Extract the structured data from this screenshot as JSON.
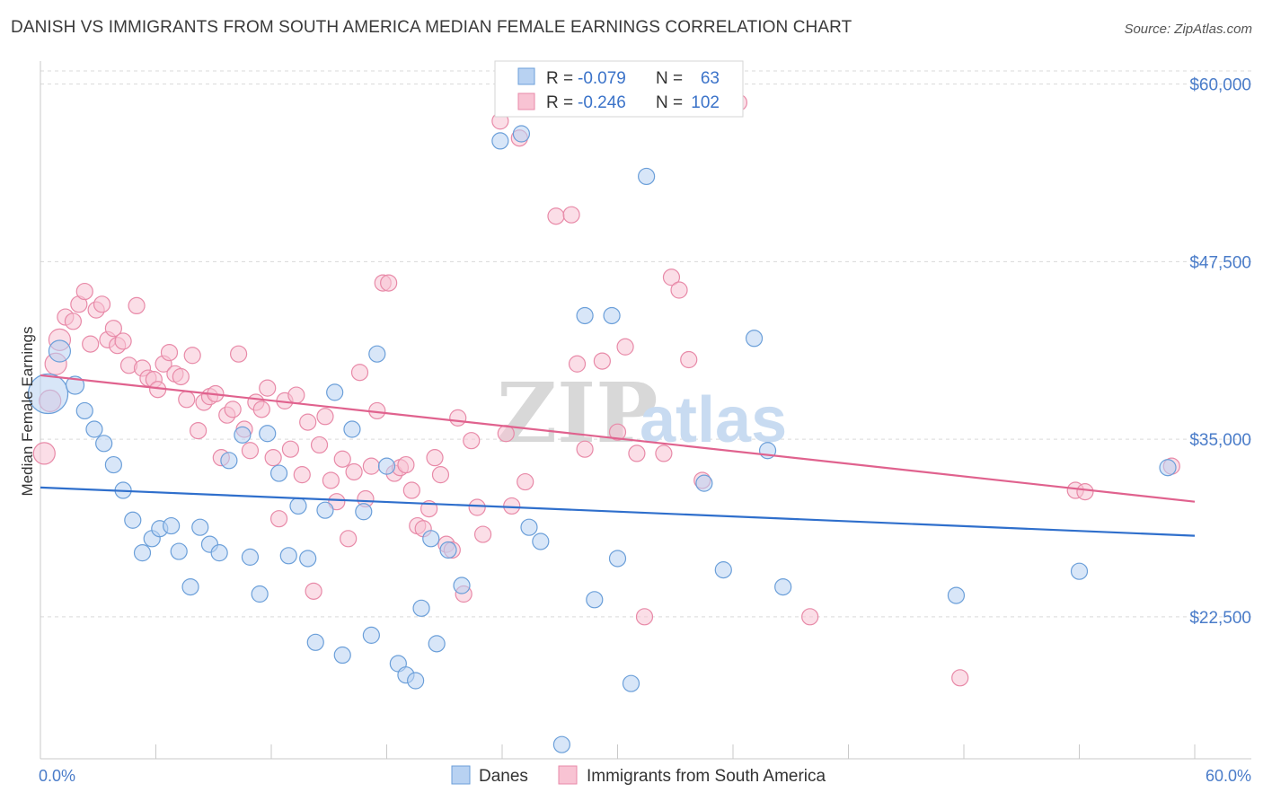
{
  "title": "DANISH VS IMMIGRANTS FROM SOUTH AMERICA MEDIAN FEMALE EARNINGS CORRELATION CHART",
  "source": "Source: ZipAtlas.com",
  "watermark": {
    "zip": "ZIP",
    "atlas": "atlas"
  },
  "colors": {
    "danes_fill": "#b8d2f2",
    "danes_stroke": "#6b9fd9",
    "danes_line": "#2f6fcc",
    "sa_fill": "#f8c3d3",
    "sa_stroke": "#e88aa8",
    "sa_line": "#e0628e",
    "grid": "#d9d9d9",
    "tick_label": "#4a7cc9"
  },
  "legend": {
    "rows": [
      {
        "r_label": "R = ",
        "r_value": "-0.079",
        "n_label": "N = ",
        "n_value": "63"
      },
      {
        "r_label": "R = ",
        "r_value": "-0.246",
        "n_label": "N = ",
        "n_value": "102"
      }
    ]
  },
  "bottom_legend": [
    "Danes",
    "Immigrants from South America"
  ],
  "chart_data": {
    "type": "scatter",
    "ylabel": "Median Female Earnings",
    "xlabel": "",
    "xlim": [
      0,
      60
    ],
    "ylim": [
      12500,
      62000
    ],
    "x_tick_labels": {
      "left": "0.0%",
      "right": "60.0%"
    },
    "y_ticks": [
      {
        "value": 22500,
        "label": "$22,500"
      },
      {
        "value": 35000,
        "label": "$35,000"
      },
      {
        "value": 47500,
        "label": "$47,500"
      },
      {
        "value": 60000,
        "label": "$60,000"
      }
    ],
    "grid": true,
    "series": [
      {
        "name": "Danes",
        "trend": {
          "x0": 0,
          "y0": 31600,
          "x1": 60,
          "y1": 28200
        },
        "points": [
          [
            0.4,
            38200,
            22
          ],
          [
            1.0,
            41200,
            12
          ],
          [
            1.8,
            38800,
            10
          ],
          [
            2.3,
            37000,
            9
          ],
          [
            2.8,
            35700,
            9
          ],
          [
            3.3,
            34700,
            9
          ],
          [
            3.8,
            33200,
            9
          ],
          [
            4.3,
            31400,
            9
          ],
          [
            4.8,
            29300,
            9
          ],
          [
            5.3,
            27000,
            9
          ],
          [
            5.8,
            28000,
            9
          ],
          [
            6.2,
            28700,
            9
          ],
          [
            6.8,
            28900,
            9
          ],
          [
            7.2,
            27100,
            9
          ],
          [
            7.8,
            24600,
            9
          ],
          [
            8.3,
            28800,
            9
          ],
          [
            8.8,
            27600,
            9
          ],
          [
            9.3,
            27000,
            9
          ],
          [
            9.8,
            33500,
            9
          ],
          [
            10.5,
            35300,
            9
          ],
          [
            10.9,
            26700,
            9
          ],
          [
            11.4,
            24100,
            9
          ],
          [
            11.8,
            35400,
            9
          ],
          [
            12.4,
            32600,
            9
          ],
          [
            12.9,
            26800,
            9
          ],
          [
            13.4,
            30300,
            9
          ],
          [
            13.9,
            26600,
            9
          ],
          [
            14.3,
            20700,
            9
          ],
          [
            14.8,
            30000,
            9
          ],
          [
            15.3,
            38300,
            9
          ],
          [
            15.7,
            19800,
            9
          ],
          [
            16.2,
            35700,
            9
          ],
          [
            16.8,
            29900,
            9
          ],
          [
            17.2,
            21200,
            9
          ],
          [
            17.5,
            41000,
            9
          ],
          [
            18.0,
            33100,
            9
          ],
          [
            18.6,
            19200,
            9
          ],
          [
            19.0,
            18400,
            9
          ],
          [
            19.5,
            18000,
            9
          ],
          [
            19.8,
            23100,
            9
          ],
          [
            20.3,
            28000,
            9
          ],
          [
            20.6,
            20600,
            9
          ],
          [
            21.2,
            27200,
            9
          ],
          [
            21.9,
            24700,
            9
          ],
          [
            23.9,
            56000,
            9
          ],
          [
            25.0,
            56500,
            9
          ],
          [
            25.4,
            28800,
            9
          ],
          [
            26.0,
            27800,
            9
          ],
          [
            27.1,
            13500,
            9
          ],
          [
            28.3,
            43700,
            9
          ],
          [
            28.8,
            23700,
            9
          ],
          [
            29.7,
            43700,
            9
          ],
          [
            30.0,
            26600,
            9
          ],
          [
            30.7,
            17800,
            9
          ],
          [
            31.5,
            53500,
            9
          ],
          [
            34.5,
            31900,
            9
          ],
          [
            35.5,
            25800,
            9
          ],
          [
            37.1,
            42100,
            9
          ],
          [
            37.8,
            34200,
            9
          ],
          [
            38.6,
            24600,
            9
          ],
          [
            47.6,
            24000,
            9
          ],
          [
            54.0,
            25700,
            9
          ],
          [
            58.6,
            33000,
            9
          ]
        ]
      },
      {
        "name": "Immigrants from South America",
        "trend": {
          "x0": 0,
          "y0": 39500,
          "x1": 60,
          "y1": 30600
        },
        "points": [
          [
            0.2,
            34000,
            12
          ],
          [
            0.5,
            37700,
            12
          ],
          [
            0.8,
            40300,
            12
          ],
          [
            1.0,
            42000,
            12
          ],
          [
            1.3,
            43600,
            9
          ],
          [
            1.7,
            43300,
            9
          ],
          [
            2.0,
            44500,
            9
          ],
          [
            2.3,
            45400,
            9
          ],
          [
            2.6,
            41700,
            9
          ],
          [
            2.9,
            44100,
            9
          ],
          [
            3.2,
            44500,
            9
          ],
          [
            3.5,
            42000,
            9
          ],
          [
            3.8,
            42800,
            9
          ],
          [
            4.0,
            41600,
            9
          ],
          [
            4.3,
            41900,
            9
          ],
          [
            4.6,
            40200,
            9
          ],
          [
            5.0,
            44400,
            9
          ],
          [
            5.3,
            40000,
            9
          ],
          [
            5.6,
            39300,
            9
          ],
          [
            5.9,
            39200,
            9
          ],
          [
            6.1,
            38500,
            9
          ],
          [
            6.4,
            40300,
            9
          ],
          [
            6.7,
            41100,
            9
          ],
          [
            7.0,
            39600,
            9
          ],
          [
            7.3,
            39400,
            9
          ],
          [
            7.6,
            37800,
            9
          ],
          [
            7.9,
            40900,
            9
          ],
          [
            8.2,
            35600,
            9
          ],
          [
            8.5,
            37600,
            9
          ],
          [
            8.8,
            38000,
            9
          ],
          [
            9.1,
            38200,
            9
          ],
          [
            9.4,
            33700,
            9
          ],
          [
            9.7,
            36700,
            9
          ],
          [
            10.0,
            37100,
            9
          ],
          [
            10.3,
            41000,
            9
          ],
          [
            10.6,
            35700,
            9
          ],
          [
            10.9,
            34200,
            9
          ],
          [
            11.2,
            37600,
            9
          ],
          [
            11.5,
            37100,
            9
          ],
          [
            11.8,
            38600,
            9
          ],
          [
            12.1,
            33700,
            9
          ],
          [
            12.4,
            29400,
            9
          ],
          [
            12.7,
            37700,
            9
          ],
          [
            13.0,
            34300,
            9
          ],
          [
            13.3,
            38100,
            9
          ],
          [
            13.6,
            32500,
            9
          ],
          [
            13.9,
            36200,
            9
          ],
          [
            14.2,
            24300,
            9
          ],
          [
            14.5,
            34600,
            9
          ],
          [
            14.8,
            36600,
            9
          ],
          [
            15.1,
            32100,
            9
          ],
          [
            15.4,
            30600,
            9
          ],
          [
            15.7,
            33600,
            9
          ],
          [
            16.0,
            28000,
            9
          ],
          [
            16.3,
            32700,
            9
          ],
          [
            16.6,
            39700,
            9
          ],
          [
            16.9,
            30800,
            9
          ],
          [
            17.2,
            33100,
            9
          ],
          [
            17.5,
            37000,
            9
          ],
          [
            17.8,
            46000,
            9
          ],
          [
            18.1,
            46000,
            9
          ],
          [
            18.4,
            32600,
            9
          ],
          [
            18.7,
            33000,
            9
          ],
          [
            19.0,
            33200,
            9
          ],
          [
            19.3,
            31400,
            9
          ],
          [
            19.6,
            28900,
            9
          ],
          [
            19.9,
            28700,
            9
          ],
          [
            20.2,
            30100,
            9
          ],
          [
            20.5,
            33700,
            9
          ],
          [
            20.8,
            32500,
            9
          ],
          [
            21.1,
            27600,
            9
          ],
          [
            21.4,
            27200,
            9
          ],
          [
            21.7,
            36500,
            9
          ],
          [
            22.0,
            24100,
            9
          ],
          [
            22.4,
            34900,
            9
          ],
          [
            22.7,
            30200,
            9
          ],
          [
            23.0,
            28300,
            9
          ],
          [
            23.9,
            57400,
            9
          ],
          [
            24.2,
            35400,
            9
          ],
          [
            24.5,
            30300,
            9
          ],
          [
            24.9,
            56200,
            9
          ],
          [
            25.2,
            32000,
            9
          ],
          [
            26.8,
            50700,
            9
          ],
          [
            27.6,
            50800,
            9
          ],
          [
            27.9,
            40300,
            9
          ],
          [
            28.3,
            34300,
            9
          ],
          [
            29.2,
            40500,
            9
          ],
          [
            30.0,
            35500,
            9
          ],
          [
            30.4,
            41500,
            9
          ],
          [
            31.0,
            34000,
            9
          ],
          [
            31.4,
            22500,
            9
          ],
          [
            32.4,
            34000,
            9
          ],
          [
            32.8,
            46400,
            9
          ],
          [
            33.2,
            45500,
            9
          ],
          [
            33.7,
            40600,
            9
          ],
          [
            34.4,
            32100,
            9
          ],
          [
            36.3,
            58700,
            9
          ],
          [
            40.0,
            22500,
            9
          ],
          [
            47.8,
            18200,
            9
          ],
          [
            53.8,
            31400,
            9
          ],
          [
            54.3,
            31300,
            9
          ],
          [
            58.8,
            33100,
            9
          ]
        ]
      }
    ]
  }
}
